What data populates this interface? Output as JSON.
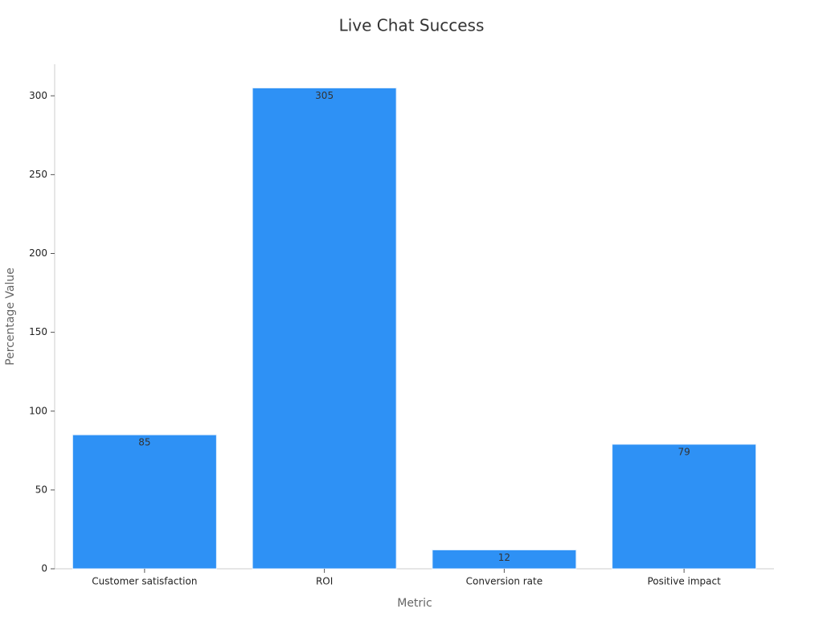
{
  "chart_data": {
    "type": "bar",
    "title": "Live Chat Success",
    "x_label": "Metric",
    "y_label": "Percentage Value",
    "categories": [
      "Customer satisfaction",
      "ROI",
      "Conversion rate",
      "Positive impact"
    ],
    "values": [
      85,
      305,
      12,
      79
    ],
    "color": "#2e91f5",
    "ylim": [
      0,
      320
    ],
    "yticks": [
      0,
      50,
      100,
      150,
      200,
      250,
      300
    ],
    "grid": false
  }
}
